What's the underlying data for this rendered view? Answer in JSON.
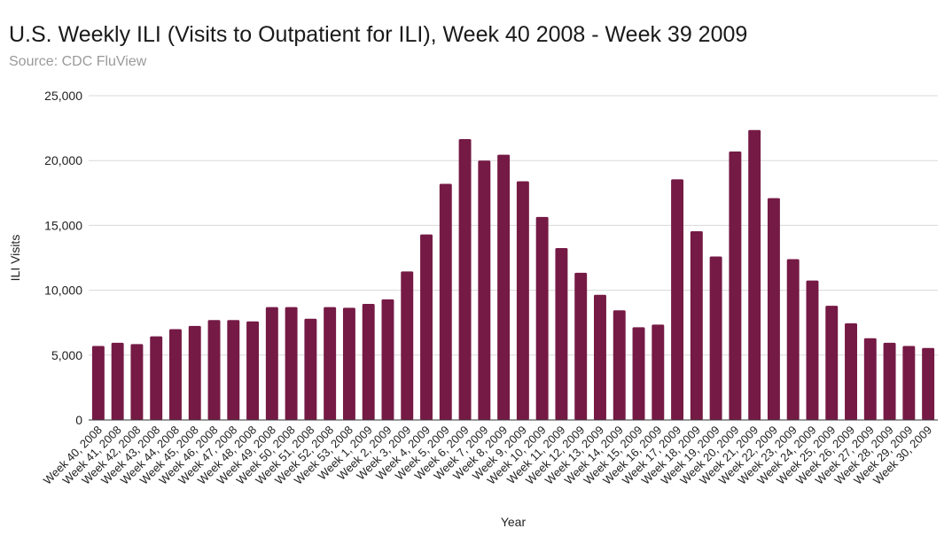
{
  "chart_data": {
    "type": "bar",
    "title": "U.S. Weekly ILI (Visits to Outpatient for ILI), Week 40 2008 - Week 39 2009",
    "subtitle": "Source: CDC FluView",
    "xlabel": "Year",
    "ylabel": "ILI Visits",
    "ylim": [
      0,
      25000
    ],
    "yticks": [
      0,
      5000,
      10000,
      15000,
      20000,
      25000
    ],
    "ytick_labels": [
      "0",
      "5,000",
      "10,000",
      "15,000",
      "20,000",
      "25,000"
    ],
    "grid": true,
    "bar_color": "#751a45",
    "categories": [
      "Week 40, 2008",
      "Week 41, 2008",
      "Week 42, 2008",
      "Week 43, 2008",
      "Week 44, 2008",
      "Week 45, 2008",
      "Week 46, 2008",
      "Week 47, 2008",
      "Week 48, 2008",
      "Week 49, 2008",
      "Week 50, 2008",
      "Week 51, 2008",
      "Week 52, 2008",
      "Week 53, 2008",
      "Week 1, 2009",
      "Week 2, 2009",
      "Week 3, 2009",
      "Week 4, 2009",
      "Week 5, 2009",
      "Week 6, 2009",
      "Week 7, 2009",
      "Week 8, 2009",
      "Week 9, 2009",
      "Week 10, 2009",
      "Week 11, 2009",
      "Week 12, 2009",
      "Week 13, 2009",
      "Week 14, 2009",
      "Week 15, 2009",
      "Week 16, 2009",
      "Week 17, 2009",
      "Week 18, 2009",
      "Week 19, 2009",
      "Week 20, 2009",
      "Week 21, 2009",
      "Week 22, 2009",
      "Week 23, 2009",
      "Week 24, 2009",
      "Week 25, 2009",
      "Week 26, 2009",
      "Week 27, 2009",
      "Week 28, 2009",
      "Week 29, 2009",
      "Week 30, 2009"
    ],
    "values": [
      5700,
      5950,
      5850,
      6450,
      7000,
      7250,
      7700,
      7700,
      7600,
      8700,
      8700,
      7800,
      8700,
      8650,
      8950,
      9300,
      11450,
      14300,
      18200,
      21650,
      20000,
      20450,
      18400,
      15650,
      13250,
      11350,
      9650,
      8450,
      7150,
      7350,
      18550,
      14550,
      12600,
      20700,
      22350,
      17100,
      12400,
      10750,
      8800,
      7450,
      6300,
      5950,
      5700,
      5550
    ]
  }
}
